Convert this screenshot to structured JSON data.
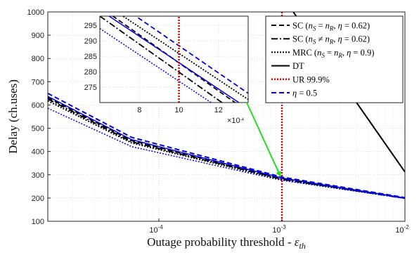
{
  "chart_data": {
    "type": "line",
    "xscale": "log",
    "xlabel": "Outage probability threshold - ε_th",
    "ylabel": "Delay (ch.uses)",
    "xlim": [
      1.25e-05,
      0.01
    ],
    "ylim": [
      100,
      1000
    ],
    "grid": true,
    "legend_position": "top-right",
    "x_ticks": [
      {
        "value": 0.0001,
        "base": "10",
        "exp": "-4"
      },
      {
        "value": 0.001,
        "base": "10",
        "exp": "-3"
      },
      {
        "value": 0.01,
        "base": "10",
        "exp": "-2"
      }
    ],
    "y_ticks": [
      100,
      200,
      300,
      400,
      500,
      600,
      700,
      800,
      900,
      1000
    ],
    "series": [
      {
        "name": "SC (n_S = n_R, η = 0.62)",
        "legend_parts": [
          {
            "t": "SC ("
          },
          {
            "t": "n",
            "i": true
          },
          {
            "t": "S",
            "sub": true,
            "i": true
          },
          {
            "t": " = "
          },
          {
            "t": "n",
            "i": true
          },
          {
            "t": "R",
            "sub": true,
            "i": true
          },
          {
            "t": ", "
          },
          {
            "t": "η",
            "i": true
          },
          {
            "t": " = 0.62)"
          }
        ],
        "color": "#000000",
        "dash": "7,4",
        "width": 2,
        "x": [
          1.25e-05,
          6e-05,
          0.001,
          0.01
        ],
        "y": [
          632,
          447,
          284,
          200
        ]
      },
      {
        "name": "SC (n_S ≠ n_R, η = 0.62)",
        "legend_parts": [
          {
            "t": "SC ("
          },
          {
            "t": "n",
            "i": true
          },
          {
            "t": "S",
            "sub": true,
            "i": true
          },
          {
            "t": " ≠ "
          },
          {
            "t": "n",
            "i": true
          },
          {
            "t": "R",
            "sub": true,
            "i": true
          },
          {
            "t": ", "
          },
          {
            "t": "η",
            "i": true
          },
          {
            "t": " = 0.62)"
          }
        ],
        "color": "#000000",
        "dash": "9,3,2,3",
        "width": 2,
        "x": [
          1.25e-05,
          6e-05,
          0.001,
          0.01
        ],
        "y": [
          626,
          442,
          281,
          199
        ]
      },
      {
        "name": "MRC (n_S = n_R, η = 0.9)",
        "legend_parts": [
          {
            "t": "MRC ("
          },
          {
            "t": "n",
            "i": true
          },
          {
            "t": "S",
            "sub": true,
            "i": true
          },
          {
            "t": " = "
          },
          {
            "t": "n",
            "i": true
          },
          {
            "t": "R",
            "sub": true,
            "i": true
          },
          {
            "t": ", "
          },
          {
            "t": "η",
            "i": true
          },
          {
            "t": " = 0.9)"
          }
        ],
        "color": "#000000",
        "dash": "2,2",
        "width": 2,
        "x": [
          1.25e-05,
          6e-05,
          0.001,
          0.01
        ],
        "y": [
          618,
          437,
          279,
          199
        ]
      },
      {
        "name": "DT",
        "legend_parts": [
          {
            "t": "DT"
          }
        ],
        "color": "#000000",
        "dash": "",
        "width": 2,
        "x": [
          0.0012,
          0.01
        ],
        "y": [
          1010,
          312
        ]
      },
      {
        "name": "UR 99.9%",
        "legend_parts": [
          {
            "t": "UR 99.9%"
          }
        ],
        "color": "#e00000",
        "dash": "2,2",
        "width": 2.5,
        "x": [
          0.001,
          0.001
        ],
        "y": [
          100,
          1000
        ]
      },
      {
        "name": "η = 0.5",
        "legend_parts": [
          {
            "t": "η",
            "i": true
          },
          {
            "t": " = 0.5"
          }
        ],
        "color": "#0000e6",
        "dash": "7,4",
        "width": 2,
        "x": [
          1.25e-05,
          6e-05,
          0.001,
          0.01
        ],
        "y": [
          650,
          461,
          290,
          202
        ]
      },
      {
        "name": "",
        "color": "#0000e6",
        "dash": "",
        "width": 1.5,
        "x": [
          1.25e-05,
          6e-05,
          0.001,
          0.01
        ],
        "y": [
          637,
          451,
          286,
          200
        ]
      },
      {
        "name": "",
        "color": "#0000e6",
        "dash": "2,2",
        "width": 1.5,
        "x": [
          1.25e-05,
          6e-05,
          0.001,
          0.01
        ],
        "y": [
          586,
          421,
          276,
          198
        ]
      }
    ],
    "inset": {
      "xlim": [
        0.0006,
        0.00135
      ],
      "ylim": [
        270,
        298
      ],
      "x_ticks": [
        {
          "value": 0.0008,
          "label": "8"
        },
        {
          "value": 0.001,
          "label": "10"
        },
        {
          "value": 0.0012,
          "label": "12"
        }
      ],
      "y_ticks": [
        275,
        280,
        285,
        290,
        295
      ],
      "x_multiplier": {
        "base": "×10",
        "exp": "-4"
      },
      "lines": [
        {
          "color": "#000000",
          "dash": "7,4",
          "width": 1.8,
          "x": [
            0.0006,
            0.00135
          ],
          "y": [
            301,
            267
          ]
        },
        {
          "color": "#000000",
          "dash": "9,3,2,3",
          "width": 1.8,
          "x": [
            0.0006,
            0.00135
          ],
          "y": [
            298,
            264
          ]
        },
        {
          "color": "#000000",
          "dash": "2,2",
          "width": 1.8,
          "x": [
            0.0006,
            0.00135
          ],
          "y": [
            303,
            271
          ]
        },
        {
          "color": "#0000e6",
          "dash": "7,4",
          "width": 1.8,
          "x": [
            0.0006,
            0.00135
          ],
          "y": [
            306,
            273
          ]
        },
        {
          "color": "#0000e6",
          "dash": "",
          "width": 1.5,
          "x": [
            0.0006,
            0.00135
          ],
          "y": [
            300,
            268
          ]
        },
        {
          "color": "#0000e6",
          "dash": "2,2",
          "width": 1.5,
          "x": [
            0.0006,
            0.00135
          ],
          "y": [
            294,
            262
          ]
        },
        {
          "color": "#e00000",
          "dash": "2,2",
          "width": 2.5,
          "x": [
            0.001,
            0.001
          ],
          "y": [
            270,
            298
          ]
        }
      ]
    },
    "arrow": {
      "color": "#22dd22",
      "to": {
        "x": 0.001,
        "y": 284
      }
    }
  }
}
